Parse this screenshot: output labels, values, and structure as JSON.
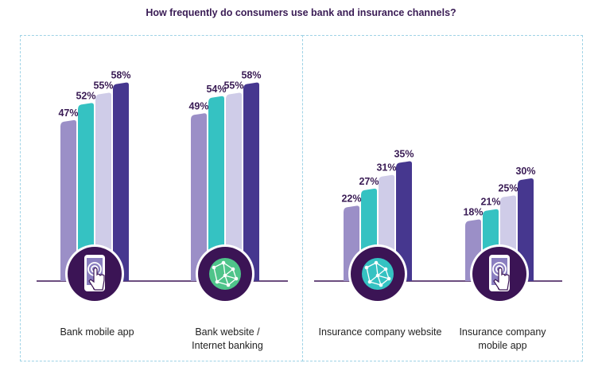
{
  "chart_data": {
    "type": "bar",
    "title": "How frequently do consumers use bank and insurance channels?",
    "categories": [
      "Bank mobile app",
      "Bank website / Internet banking",
      "Insurance company website",
      "Insurance company mobile app"
    ],
    "category_lines": [
      [
        "Bank mobile app"
      ],
      [
        "Bank website /",
        "Internet banking"
      ],
      [
        "Insurance company website"
      ],
      [
        "Insurance company",
        "mobile app"
      ]
    ],
    "category_icons": [
      "smartphone-tap-icon",
      "globe-network-icon",
      "globe-network-icon",
      "smartphone-tap-icon"
    ],
    "series": [
      {
        "name": "series-1",
        "color": "#9b8fc7",
        "values": [
          47,
          49,
          22,
          18
        ]
      },
      {
        "name": "series-2",
        "color": "#35c2c2",
        "values": [
          52,
          54,
          27,
          21
        ]
      },
      {
        "name": "series-3",
        "color": "#cfcce8",
        "values": [
          55,
          55,
          31,
          25
        ]
      },
      {
        "name": "series-4",
        "color": "#46378f",
        "values": [
          58,
          58,
          35,
          30
        ]
      }
    ],
    "value_suffix": "%",
    "ylim": [
      0,
      60
    ],
    "xlabel": "",
    "ylabel": "",
    "legend": "none",
    "grid": false
  },
  "colors": {
    "title": "#3a1c55",
    "value_label": "#3a1c55",
    "icon_circle": "#3b1455",
    "baseline": "#3b1455",
    "panel_border": "#9fd3e6"
  }
}
